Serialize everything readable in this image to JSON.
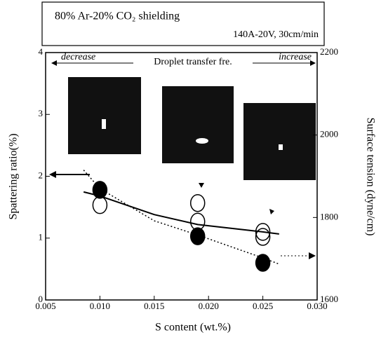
{
  "chart_data": {
    "type": "scatter",
    "title": "80% Ar-20% CO₂ shielding",
    "subtitle": "140A-20V, 30cm/min",
    "xlabel": "S content (wt.%)",
    "ylabel": "Spattering ratio(%)",
    "y2label": "Surface tension (dyne/cm)",
    "annotations": [
      "decrease",
      "Droplet transfer fre.",
      "increase"
    ],
    "xlim": [
      0.005,
      0.03
    ],
    "xticks": [
      {
        "value": 0.005,
        "label": "0.005"
      },
      {
        "value": 0.01,
        "label": "0.010"
      },
      {
        "value": 0.015,
        "label": "0.015"
      },
      {
        "value": 0.02,
        "label": "0.020"
      },
      {
        "value": 0.025,
        "label": "0.025"
      },
      {
        "value": 0.03,
        "label": "0.030"
      }
    ],
    "ylim": [
      0,
      4
    ],
    "yticks": [
      0,
      1,
      2,
      3,
      4
    ],
    "y2lim": [
      1600,
      2200
    ],
    "y2ticks": [
      1600,
      1800,
      2000,
      2200
    ],
    "series": [
      {
        "style": "filled-circle",
        "color": "#000000",
        "axis": "y",
        "x": [
          0.01,
          0.019,
          0.025
        ],
        "values": [
          1.78,
          1.03,
          0.6
        ]
      },
      {
        "style": "open-circle",
        "color": "#000000",
        "axis": "y2",
        "x": [
          0.01,
          0.019,
          0.019,
          0.025,
          0.025
        ],
        "values": [
          1830,
          1835,
          1790,
          1765,
          1753
        ]
      },
      {
        "style": "dotted-line",
        "color": "#000000",
        "axis": "y",
        "x": [
          0.0085,
          0.01,
          0.015,
          0.019,
          0.025,
          0.0265
        ],
        "values": [
          2.1,
          1.8,
          1.28,
          1.05,
          0.68,
          0.58
        ]
      },
      {
        "style": "solid-line",
        "color": "#000000",
        "axis": "y2",
        "x": [
          0.0085,
          0.01,
          0.015,
          0.019,
          0.025,
          0.0265
        ],
        "values": [
          1862,
          1852,
          1807,
          1783,
          1765,
          1760
        ]
      }
    ]
  }
}
